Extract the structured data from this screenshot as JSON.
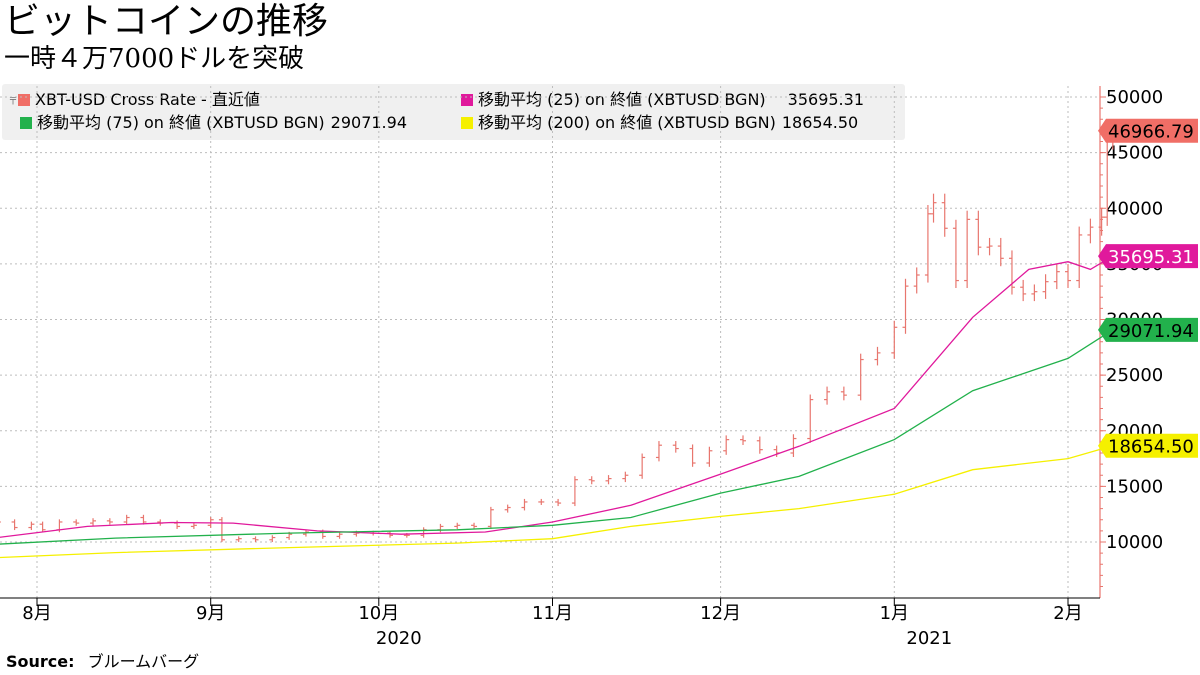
{
  "title": "ビットコインの推移",
  "subtitle": "一時４万7000ドルを突破",
  "source_label": "Source:",
  "source_text": "ブルームバーグ",
  "colors": {
    "price": "#e8766e",
    "ma25": "#e0199c",
    "ma75": "#22b14c",
    "ma200": "#f5f000",
    "grid": "#bdbdbd",
    "axis": "#e8766e"
  },
  "legend": [
    {
      "label": "XBT-USD Cross Rate - 直近値",
      "value": "",
      "color": "#f06e66",
      "candle": true
    },
    {
      "label": "移動平均 (25)  on 終値 (XBTUSD BGN)",
      "value": "35695.31",
      "color": "#e0199c"
    },
    {
      "label": "移動平均 (75)  on 終値 (XBTUSD BGN)",
      "value": "29071.94",
      "color": "#22b14c"
    },
    {
      "label": "移動平均 (200)  on 終値 (XBTUSD BGN)",
      "value": "18654.50",
      "color": "#f5f000"
    }
  ],
  "chart_data": {
    "type": "line",
    "x_month_labels": [
      "8月",
      "9月",
      "10月",
      "11月",
      "12月",
      "1月",
      "2月"
    ],
    "x_year_labels": [
      "2020",
      "2021"
    ],
    "y_ticks": [
      10000,
      15000,
      20000,
      25000,
      30000,
      35000,
      40000,
      45000,
      50000
    ],
    "ylim": [
      5500,
      51500
    ],
    "xlim": [
      "2020-07-25",
      "2021-02-07"
    ],
    "grid": true,
    "legend_position": "top-left",
    "last_value_labels": [
      {
        "value": "46966.79",
        "series": "price",
        "bg": "#f06e66",
        "fg": "#000000"
      },
      {
        "value": "35695.31",
        "series": "ma25",
        "bg": "#e0199c",
        "fg": "#ffffff"
      },
      {
        "value": "29071.94",
        "series": "ma75",
        "bg": "#22b14c",
        "fg": "#000000"
      },
      {
        "value": "18654.50",
        "series": "ma200",
        "bg": "#f5f000",
        "fg": "#000000"
      }
    ],
    "series": [
      {
        "key": "price",
        "style": "ohlc",
        "points": [
          [
            "2020-07-25",
            11800
          ],
          [
            "2020-07-28",
            11300
          ],
          [
            "2020-07-31",
            11600
          ],
          [
            "2020-08-02",
            11100
          ],
          [
            "2020-08-05",
            11800
          ],
          [
            "2020-08-08",
            11700
          ],
          [
            "2020-08-11",
            11900
          ],
          [
            "2020-08-14",
            11800
          ],
          [
            "2020-08-17",
            12200
          ],
          [
            "2020-08-20",
            11800
          ],
          [
            "2020-08-23",
            11700
          ],
          [
            "2020-08-26",
            11400
          ],
          [
            "2020-08-29",
            11500
          ],
          [
            "2020-09-01",
            12000
          ],
          [
            "2020-09-03",
            10200
          ],
          [
            "2020-09-06",
            10300
          ],
          [
            "2020-09-09",
            10200
          ],
          [
            "2020-09-12",
            10400
          ],
          [
            "2020-09-15",
            10700
          ],
          [
            "2020-09-18",
            10900
          ],
          [
            "2020-09-21",
            10500
          ],
          [
            "2020-09-24",
            10700
          ],
          [
            "2020-09-27",
            10800
          ],
          [
            "2020-09-30",
            10800
          ],
          [
            "2020-10-03",
            10600
          ],
          [
            "2020-10-06",
            10600
          ],
          [
            "2020-10-09",
            11100
          ],
          [
            "2020-10-12",
            11400
          ],
          [
            "2020-10-15",
            11500
          ],
          [
            "2020-10-18",
            11400
          ],
          [
            "2020-10-21",
            12900
          ],
          [
            "2020-10-24",
            13100
          ],
          [
            "2020-10-27",
            13600
          ],
          [
            "2020-10-30",
            13600
          ],
          [
            "2020-11-02",
            13500
          ],
          [
            "2020-11-05",
            15600
          ],
          [
            "2020-11-08",
            15500
          ],
          [
            "2020-11-11",
            15700
          ],
          [
            "2020-11-14",
            16000
          ],
          [
            "2020-11-17",
            17600
          ],
          [
            "2020-11-20",
            18700
          ],
          [
            "2020-11-23",
            18400
          ],
          [
            "2020-11-26",
            17100
          ],
          [
            "2020-11-29",
            18200
          ],
          [
            "2020-12-02",
            19200
          ],
          [
            "2020-12-05",
            19100
          ],
          [
            "2020-12-08",
            18300
          ],
          [
            "2020-12-11",
            18000
          ],
          [
            "2020-12-14",
            19300
          ],
          [
            "2020-12-17",
            22800
          ],
          [
            "2020-12-20",
            23500
          ],
          [
            "2020-12-23",
            23200
          ],
          [
            "2020-12-26",
            26400
          ],
          [
            "2020-12-29",
            27000
          ],
          [
            "2021-01-01",
            29300
          ],
          [
            "2021-01-03",
            33000
          ],
          [
            "2021-01-05",
            34000
          ],
          [
            "2021-01-07",
            39500
          ],
          [
            "2021-01-08",
            40500
          ],
          [
            "2021-01-10",
            38200
          ],
          [
            "2021-01-12",
            33500
          ],
          [
            "2021-01-14",
            39000
          ],
          [
            "2021-01-16",
            36500
          ],
          [
            "2021-01-18",
            36600
          ],
          [
            "2021-01-20",
            35500
          ],
          [
            "2021-01-22",
            32900
          ],
          [
            "2021-01-24",
            32300
          ],
          [
            "2021-01-26",
            32500
          ],
          [
            "2021-01-28",
            33400
          ],
          [
            "2021-01-30",
            34300
          ],
          [
            "2021-02-01",
            33500
          ],
          [
            "2021-02-03",
            37600
          ],
          [
            "2021-02-05",
            38300
          ],
          [
            "2021-02-07",
            39200
          ],
          [
            "2021-02-08",
            46200
          ],
          [
            "2021-02-09",
            46966.79
          ]
        ]
      },
      {
        "key": "ma25",
        "style": "line",
        "points": [
          [
            "2020-07-25",
            10400
          ],
          [
            "2020-08-10",
            11400
          ],
          [
            "2020-08-25",
            11750
          ],
          [
            "2020-09-05",
            11700
          ],
          [
            "2020-09-20",
            11000
          ],
          [
            "2020-10-05",
            10700
          ],
          [
            "2020-10-20",
            10900
          ],
          [
            "2020-11-01",
            11800
          ],
          [
            "2020-11-15",
            13300
          ],
          [
            "2020-12-01",
            16100
          ],
          [
            "2020-12-15",
            18600
          ],
          [
            "2021-01-01",
            22000
          ],
          [
            "2021-01-15",
            30200
          ],
          [
            "2021-01-25",
            34500
          ],
          [
            "2021-02-01",
            35200
          ],
          [
            "2021-02-05",
            34500
          ],
          [
            "2021-02-09",
            35695.31
          ]
        ]
      },
      {
        "key": "ma75",
        "style": "line",
        "points": [
          [
            "2020-07-25",
            9800
          ],
          [
            "2020-08-15",
            10350
          ],
          [
            "2020-09-15",
            10800
          ],
          [
            "2020-10-15",
            11100
          ],
          [
            "2020-11-01",
            11500
          ],
          [
            "2020-11-15",
            12200
          ],
          [
            "2020-12-01",
            14400
          ],
          [
            "2020-12-15",
            15900
          ],
          [
            "2021-01-01",
            19200
          ],
          [
            "2021-01-15",
            23600
          ],
          [
            "2021-02-01",
            26500
          ],
          [
            "2021-02-09",
            29071.94
          ]
        ]
      },
      {
        "key": "ma200",
        "style": "line",
        "points": [
          [
            "2020-07-25",
            8600
          ],
          [
            "2020-08-15",
            9050
          ],
          [
            "2020-09-15",
            9500
          ],
          [
            "2020-10-15",
            9900
          ],
          [
            "2020-11-01",
            10300
          ],
          [
            "2020-11-15",
            11400
          ],
          [
            "2020-12-01",
            12300
          ],
          [
            "2020-12-15",
            13000
          ],
          [
            "2021-01-01",
            14300
          ],
          [
            "2021-01-15",
            16500
          ],
          [
            "2021-02-01",
            17500
          ],
          [
            "2021-02-09",
            18654.5
          ]
        ]
      }
    ]
  }
}
